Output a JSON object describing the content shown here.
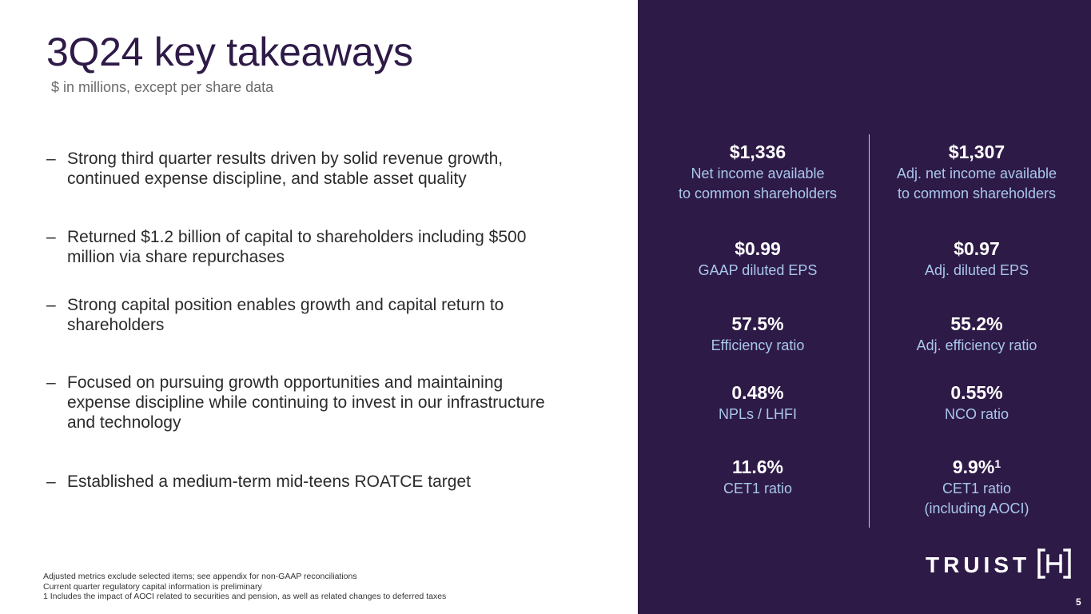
{
  "header": {
    "title": "3Q24 key takeaways",
    "subtitle": "$ in millions, except per share data"
  },
  "bullets": [
    "Strong third quarter results driven by solid revenue growth, continued expense discipline, and stable asset quality",
    "Returned $1.2 billion of capital to shareholders including $500 million via share repurchases",
    "Strong capital position enables growth and capital return to shareholders",
    "Focused on pursuing growth opportunities and maintaining expense discipline while continuing to invest in our infrastructure and technology",
    "Established a medium-term mid-teens ROATCE target"
  ],
  "bullet_dash": "–",
  "metrics": {
    "left": [
      {
        "value": "$1,336",
        "label_line1": "Net income available",
        "label_line2": "to common shareholders"
      },
      {
        "value": "$0.99",
        "label_line1": "GAAP diluted EPS"
      },
      {
        "value": "57.5%",
        "label_line1": "Efficiency ratio"
      },
      {
        "value": "0.48%",
        "label_line1": "NPLs / LHFI"
      },
      {
        "value": "11.6%",
        "label_line1": "CET1 ratio"
      }
    ],
    "right": [
      {
        "value": "$1,307",
        "label_line1": "Adj. net income available",
        "label_line2": "to common shareholders"
      },
      {
        "value": "$0.97",
        "label_line1": "Adj. diluted EPS"
      },
      {
        "value": "55.2%",
        "label_line1": "Adj. efficiency ratio"
      },
      {
        "value": "0.55%",
        "label_line1": "NCO ratio"
      },
      {
        "value": "9.9%",
        "superscript": "1",
        "label_line1": "CET1 ratio",
        "label_line2": "(including AOCI)"
      }
    ]
  },
  "footnotes": [
    "Adjusted metrics exclude selected items; see appendix for non-GAAP reconciliations",
    "Current quarter regulatory capital information is preliminary",
    "1 Includes the impact of AOCI related to securities and pension, as well as related changes to deferred taxes"
  ],
  "brand": {
    "logo_text": "TRUIST",
    "logo_icon": "truist-h-mark-icon",
    "panel_color": "#2e1a47",
    "label_color": "#a9c7ec"
  },
  "page_number": "5"
}
